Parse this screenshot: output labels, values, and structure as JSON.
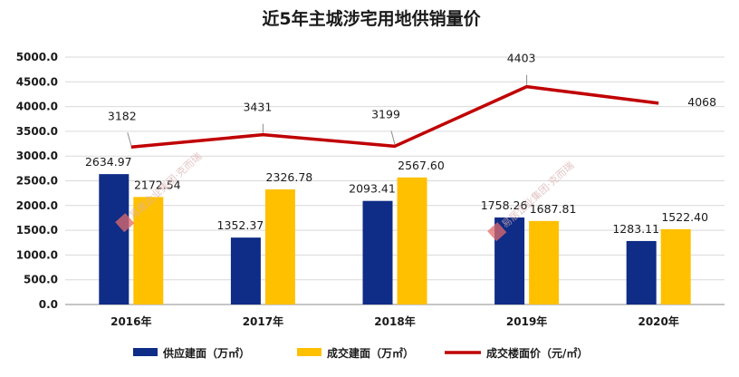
{
  "chart_data": {
    "type": "bar",
    "title": "近5年主城涉宅用地供销量价",
    "categories": [
      "2016年",
      "2017年",
      "2018年",
      "2019年",
      "2020年"
    ],
    "series": [
      {
        "name": "供应建面（万㎡）",
        "kind": "bar",
        "axis": "left",
        "color": "#0f2c86",
        "values": [
          2634.97,
          1352.37,
          2093.41,
          1758.26,
          1283.11
        ],
        "labels": [
          "2634.97",
          "1352.37",
          "2093.41",
          "1758.26",
          "1283.11"
        ]
      },
      {
        "name": "成交建面（万㎡）",
        "kind": "bar",
        "axis": "left",
        "color": "#ffc000",
        "values": [
          2172.54,
          2326.78,
          2567.6,
          1687.81,
          1522.4
        ],
        "labels": [
          "2172.54",
          "2326.78",
          "2567.60",
          "1687.81",
          "1522.40"
        ]
      },
      {
        "name": "成交楼面价（元/㎡）",
        "kind": "line",
        "axis": "right",
        "color": "#c00000",
        "values": [
          3182,
          3431,
          3199,
          4403,
          4068
        ],
        "labels": [
          "3182",
          "3431",
          "3199",
          "4403",
          "4068"
        ]
      }
    ],
    "ylim": [
      0,
      5000
    ],
    "yticks": [
      "0.0",
      "500.0",
      "1000.0",
      "1500.0",
      "2000.0",
      "2500.0",
      "3000.0",
      "3500.0",
      "4000.0",
      "4500.0",
      "5000.0"
    ],
    "grid": true,
    "legend_position": "bottom"
  },
  "watermark": {
    "text": "易居企业集团·克而瑞",
    "logo_text": "CRIC"
  }
}
